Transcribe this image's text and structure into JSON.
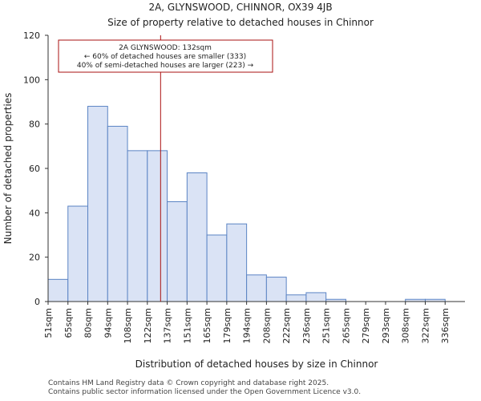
{
  "chart_data": {
    "type": "bar",
    "title": "2A, GLYNSWOOD, CHINNOR, OX39 4JB",
    "subtitle": "Size of property relative to detached houses in Chinnor",
    "xlabel": "Distribution of detached houses by size in Chinnor",
    "ylabel": "Number of detached properties",
    "categories": [
      "51sqm",
      "65sqm",
      "80sqm",
      "94sqm",
      "108sqm",
      "122sqm",
      "137sqm",
      "151sqm",
      "165sqm",
      "179sqm",
      "194sqm",
      "208sqm",
      "222sqm",
      "236sqm",
      "251sqm",
      "265sqm",
      "279sqm",
      "293sqm",
      "308sqm",
      "322sqm",
      "336sqm"
    ],
    "values": [
      10,
      43,
      88,
      79,
      68,
      68,
      45,
      58,
      30,
      35,
      12,
      11,
      3,
      4,
      1,
      0,
      0,
      0,
      1,
      1,
      0
    ],
    "ylim": [
      0,
      120
    ],
    "yticks": [
      0,
      20,
      40,
      60,
      80,
      100,
      120
    ],
    "marker": {
      "value": 132,
      "label_line1": "2A GLYNSWOOD: 132sqm",
      "label_line2": "← 60% of detached houses are smaller (333)",
      "label_line3": "40% of semi-detached houses are larger (223) →"
    },
    "bar_color": "#dae3f5",
    "bar_edge": "#5b84c4",
    "marker_color": "#aa1111"
  },
  "footer": {
    "line1": "Contains HM Land Registry data © Crown copyright and database right 2025.",
    "line2": "Contains public sector information licensed under the Open Government Licence v3.0."
  }
}
